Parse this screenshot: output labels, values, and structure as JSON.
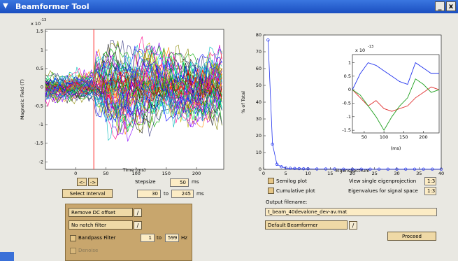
{
  "window": {
    "title": "Beamformer Tool",
    "minimize": "_",
    "close": "x"
  },
  "left_plot": {
    "exponent": "-13",
    "y_scale": "x 10",
    "ylabel": "Magnetic Field (T)",
    "xlabel": "Time (ms)",
    "yticks": [
      "1.5",
      "1",
      "0.5",
      "0",
      "-0.5",
      "-1",
      "-1.5",
      "-2"
    ],
    "xticks": [
      "0",
      "50",
      "100",
      "150",
      "200"
    ]
  },
  "right_plot": {
    "ylabel": "% of Total",
    "xlabel": "Eigenspectrum",
    "yticks": [
      "80",
      "70",
      "60",
      "50",
      "40",
      "30",
      "20",
      "10",
      "0"
    ],
    "xticks": [
      "0",
      "5",
      "10",
      "15",
      "20",
      "25",
      "30",
      "35",
      "40"
    ]
  },
  "inset_plot": {
    "exponent": "-13",
    "y_scale": "x 10",
    "yticks": [
      "1",
      "0.5",
      "0",
      "-0.5",
      "-1",
      "-1.5"
    ],
    "xticks": [
      "50",
      "100",
      "150",
      "200"
    ],
    "xlabel": "(ms)"
  },
  "chart_data": [
    {
      "type": "line",
      "title": "",
      "xlabel": "Time (ms)",
      "ylabel": "Magnetic Field (T)",
      "xlim": [
        -50,
        245
      ],
      "ylim": [
        -2.2e-13,
        1.55e-13
      ],
      "note": "butterfly plot of many sensor channels",
      "marker_x": 30,
      "marker_color": "#ff3030"
    },
    {
      "type": "line",
      "title": "",
      "xlabel": "Eigenspectrum",
      "ylabel": "% of Total",
      "xlim": [
        0,
        40
      ],
      "ylim": [
        0,
        80
      ],
      "series": [
        {
          "x": [
            1,
            2,
            3,
            4,
            5,
            6,
            7,
            8,
            9,
            10,
            12,
            14,
            16,
            18,
            20,
            22,
            24,
            26,
            28,
            30,
            32,
            34,
            36,
            38,
            40
          ],
          "values": [
            77,
            15,
            3,
            1.5,
            0.8,
            0.6,
            0.5,
            0.4,
            0.3,
            0.3,
            0.2,
            0.2,
            0.2,
            0.1,
            0.1,
            0.1,
            0.1,
            0.1,
            0.1,
            0.1,
            0.1,
            0.1,
            0.1,
            0.1,
            0.1
          ]
        }
      ],
      "color": "#2233ee"
    },
    {
      "type": "line",
      "title": "",
      "xlabel": "(ms)",
      "xlim": [
        20,
        240
      ],
      "ylim": [
        -1.6e-13,
        1.3e-13
      ],
      "x": [
        20,
        40,
        60,
        80,
        100,
        120,
        140,
        160,
        180,
        200,
        220,
        240
      ],
      "series": [
        {
          "color": "#2233ee",
          "values": [
            0.0,
            6e-14,
            1e-13,
            9e-14,
            7e-14,
            5e-14,
            3e-14,
            2e-14,
            1e-13,
            8e-14,
            6e-14,
            6e-14
          ]
        },
        {
          "color": "#e03030",
          "values": [
            0.0,
            -3e-14,
            -6e-14,
            -4e-14,
            -7e-14,
            -8e-14,
            -7e-14,
            -6e-14,
            -3e-14,
            -1e-14,
            1e-14,
            0.0
          ]
        },
        {
          "color": "#20a020",
          "values": [
            0.0,
            -2e-14,
            -6e-14,
            -1e-13,
            -1.5e-13,
            -1e-13,
            -6e-14,
            -3e-14,
            4e-14,
            2e-14,
            -1e-14,
            0.0
          ]
        }
      ]
    }
  ],
  "controls": {
    "step_left": "<-",
    "step_right": "->",
    "stepsize_label": "Stepsize",
    "stepsize_value": "50",
    "ms": "ms",
    "select_interval": "Select Interval",
    "interval_from": "30",
    "to": "to",
    "interval_to": "245",
    "interval_ms": "ms"
  },
  "filter_panel": {
    "dc_offset": "Remove DC offset",
    "notch": "No notch filter",
    "bandpass_label": "Bandpass Filter",
    "bandpass_from": "1",
    "bandpass_to_label": "to",
    "bandpass_to": "599",
    "hz": "Hz",
    "denoise": "Denoise",
    "edit_glyph": "/"
  },
  "right_controls": {
    "semilog": "Semilog plot",
    "cumulative": "Cumulative plot",
    "single_eig_label": "View single eigenprojection",
    "single_eig_value": "1:3",
    "eig_signal_label": "Eigenvalues for signal space",
    "eig_signal_value": "1:3",
    "output_label": "Output filename:",
    "output_value": "t_beam_40devalone_dev-av.mat",
    "beamformer": "Default Beamformer",
    "edit_glyph": "/",
    "proceed": "Proceed"
  }
}
